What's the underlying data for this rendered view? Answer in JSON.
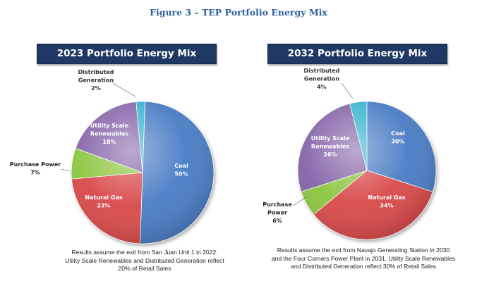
{
  "figure_title": "Figure 3 – TEP Portfolio Energy Mix",
  "colors": {
    "coal": "#4a7cc4",
    "natural_gas": "#d94848",
    "purchase_power": "#8cc63f",
    "utility_scale_renewables": "#8463a8",
    "distributed_generation": "#35b4cf",
    "title_bar": "#1f3864"
  },
  "chart_data": [
    {
      "type": "pie",
      "title": "2023 Portfolio Energy Mix",
      "slices": [
        {
          "key": "coal",
          "label": [
            "Coal"
          ],
          "value": 50,
          "value_label": "50%"
        },
        {
          "key": "natural_gas",
          "label": [
            "Natural Gas"
          ],
          "value": 23,
          "value_label": "23%"
        },
        {
          "key": "purchase_power",
          "label": [
            "Purchase Power"
          ],
          "value": 7,
          "value_label": "7%"
        },
        {
          "key": "utility_scale_renewables",
          "label": [
            "Utility Scale",
            "Renewables"
          ],
          "value": 18,
          "value_label": "18%"
        },
        {
          "key": "distributed_generation",
          "label": [
            "Distributed",
            "Generation"
          ],
          "value": 2,
          "value_label": "2%"
        }
      ],
      "note": [
        "Results assume the exit from San Juan Unit 1 in 2022.",
        "Utility Scale Renewables and Distributed Generation reflect",
        "20% of Retail Sales"
      ]
    },
    {
      "type": "pie",
      "title": "2032 Portfolio Energy Mix",
      "slices": [
        {
          "key": "coal",
          "label": [
            "Coal"
          ],
          "value": 30,
          "value_label": "30%"
        },
        {
          "key": "natural_gas",
          "label": [
            "Natural Gas"
          ],
          "value": 34,
          "value_label": "34%"
        },
        {
          "key": "purchase_power",
          "label": [
            "Purchase",
            "Power"
          ],
          "value": 6,
          "value_label": "6%"
        },
        {
          "key": "utility_scale_renewables",
          "label": [
            "Utility Scale",
            "Renewables"
          ],
          "value": 26,
          "value_label": "26%"
        },
        {
          "key": "distributed_generation",
          "label": [
            "Distributed",
            "Generation"
          ],
          "value": 4,
          "value_label": "4%"
        }
      ],
      "note": [
        "Results assume the exit from Navajo Generating Station in 2030",
        "and the Four Corners Power Plant in 2031. Utility Scale Renewables",
        "and Distributed Generation reflect 30% of Retail Sales"
      ]
    }
  ]
}
